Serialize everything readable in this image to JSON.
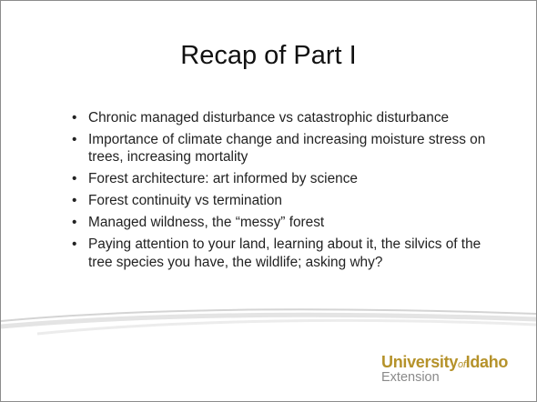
{
  "slide": {
    "title": "Recap of Part I",
    "bullets": [
      "Chronic managed disturbance vs catastrophic disturbance",
      "Importance of climate change and increasing moisture stress on trees, increasing mortality",
      "Forest architecture: art informed by science",
      "Forest continuity vs termination",
      "Managed wildness, the “messy” forest",
      "Paying attention to your land, learning about it, the silvics of the tree species you have, the wildlife; asking why?"
    ],
    "logo": {
      "university": "University",
      "of": "of",
      "idaho": "Idaho",
      "extension": "Extension"
    }
  }
}
